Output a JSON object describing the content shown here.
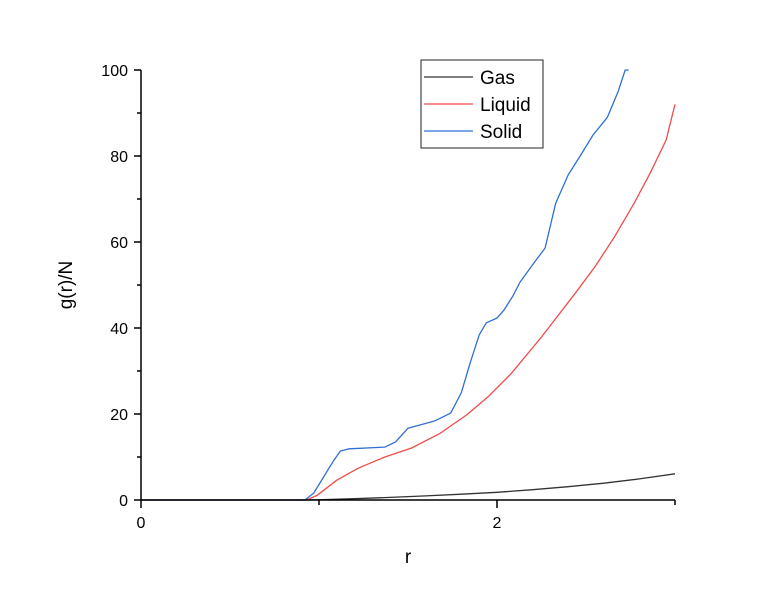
{
  "chart_data": {
    "type": "line",
    "title": "",
    "xlabel": "r",
    "ylabel": "g(r)/N",
    "xlim": [
      0,
      3
    ],
    "ylim": [
      0,
      100
    ],
    "x_major_ticks": [
      0,
      2
    ],
    "x_tick_labels": [
      "0",
      "2"
    ],
    "x_minor_ticks": [
      1,
      3
    ],
    "y_major_ticks": [
      0,
      20,
      40,
      60,
      80,
      100
    ],
    "y_tick_labels": [
      "0",
      "20",
      "40",
      "60",
      "80",
      "100"
    ],
    "y_minor_ticks": [
      10,
      30,
      50,
      70,
      90
    ],
    "grid": false,
    "legend_position": "upper center-right, inside plot",
    "series": [
      {
        "name": "Gas",
        "color": "#333333",
        "x": [
          0,
          0.9,
          1.0,
          1.2,
          1.4,
          1.6,
          1.8,
          2.0,
          2.2,
          2.4,
          2.6,
          2.8,
          3.0
        ],
        "y": [
          0,
          0,
          0.05,
          0.3,
          0.6,
          0.95,
          1.35,
          1.8,
          2.4,
          3.1,
          3.9,
          4.9,
          6.1
        ]
      },
      {
        "name": "Liquid",
        "color": "#f04b4b",
        "x": [
          0,
          0.93,
          0.99,
          1.1,
          1.22,
          1.37,
          1.52,
          1.68,
          1.83,
          1.95,
          2.08,
          2.25,
          2.44,
          2.55,
          2.66,
          2.77,
          2.86,
          2.95,
          3.0
        ],
        "y": [
          0,
          0,
          1.1,
          4.6,
          7.4,
          10.0,
          12.1,
          15.5,
          19.8,
          24.0,
          29.4,
          37.9,
          48.1,
          54.2,
          61.2,
          69.0,
          76.0,
          83.7,
          92.0
        ]
      },
      {
        "name": "Solid",
        "color": "#2f6fd6",
        "x": [
          0,
          0.92,
          0.97,
          1.08,
          1.12,
          1.17,
          1.37,
          1.43,
          1.5,
          1.59,
          1.65,
          1.74,
          1.8,
          1.85,
          1.9,
          1.94,
          2.0,
          2.04,
          2.09,
          2.13,
          2.2,
          2.27,
          2.33,
          2.4,
          2.47,
          2.54,
          2.62,
          2.68,
          2.72,
          2.74
        ],
        "y": [
          0,
          0,
          1.6,
          9.0,
          11.4,
          11.9,
          12.3,
          13.5,
          16.7,
          17.7,
          18.4,
          20.2,
          25.0,
          32.0,
          38.4,
          41.2,
          42.3,
          44.2,
          47.5,
          50.7,
          54.7,
          58.6,
          69.0,
          75.6,
          80.2,
          84.9,
          89.0,
          94.9,
          100.0,
          100.0
        ]
      }
    ]
  }
}
